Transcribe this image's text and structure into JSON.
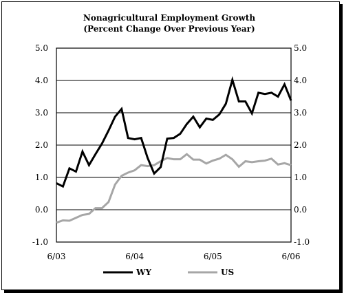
{
  "chart_data": {
    "type": "line",
    "title_line1": "Nonagricultural Employment Growth",
    "title_line2": "(Percent Change Over Previous Year)",
    "ylim": [
      -1.0,
      5.0
    ],
    "yticks": [
      "-1.0",
      "0.0",
      "1.0",
      "2.0",
      "3.0",
      "4.0",
      "5.0"
    ],
    "ytick_values": [
      -1,
      0,
      1,
      2,
      3,
      4,
      5
    ],
    "xtick_labels": [
      "6/03",
      "6/04",
      "6/05",
      "6/06"
    ],
    "grid": "horizontal",
    "legend_position": "bottom",
    "series": [
      {
        "name": "WY",
        "color": "#000000",
        "values": [
          0.82,
          0.72,
          1.28,
          1.18,
          1.8,
          1.38,
          1.72,
          2.05,
          2.45,
          2.88,
          3.12,
          2.22,
          2.18,
          2.22,
          1.6,
          1.12,
          1.32,
          2.2,
          2.22,
          2.35,
          2.65,
          2.88,
          2.55,
          2.82,
          2.78,
          2.95,
          3.28,
          4.02,
          3.35,
          3.35,
          2.98,
          3.62,
          3.58,
          3.62,
          3.5,
          3.88,
          3.38
        ]
      },
      {
        "name": "US",
        "color": "#a6a6a6",
        "values": [
          -0.4,
          -0.33,
          -0.34,
          -0.25,
          -0.16,
          -0.13,
          0.05,
          0.05,
          0.24,
          0.78,
          1.05,
          1.15,
          1.22,
          1.38,
          1.35,
          1.38,
          1.5,
          1.6,
          1.56,
          1.56,
          1.72,
          1.55,
          1.55,
          1.43,
          1.52,
          1.58,
          1.7,
          1.56,
          1.33,
          1.5,
          1.47,
          1.5,
          1.52,
          1.58,
          1.4,
          1.44,
          1.38
        ]
      }
    ]
  }
}
